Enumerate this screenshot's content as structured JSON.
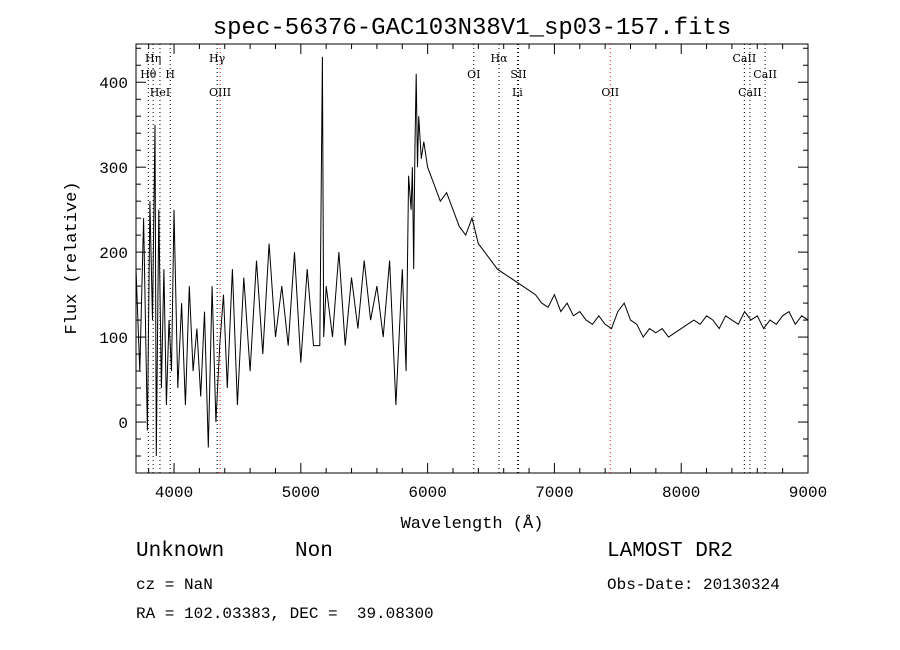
{
  "chart_data": {
    "type": "line",
    "title": "spec-56376-GAC103N38V1_sp03-157.fits",
    "xlabel": "Wavelength (Å)",
    "ylabel": "Flux (relative)",
    "xlim": [
      3700,
      9000
    ],
    "ylim": [
      -60,
      445
    ],
    "xticks": [
      4000,
      5000,
      6000,
      7000,
      8000,
      9000
    ],
    "yticks": [
      0,
      100,
      200,
      300,
      400
    ],
    "grid": false,
    "series": [
      {
        "color": "#000000",
        "x": [
          3700,
          3730,
          3760,
          3790,
          3810,
          3830,
          3850,
          3860,
          3880,
          3900,
          3920,
          3940,
          3960,
          3980,
          4000,
          4030,
          4060,
          4090,
          4120,
          4150,
          4180,
          4210,
          4240,
          4270,
          4300,
          4330,
          4360,
          4390,
          4420,
          4460,
          4500,
          4550,
          4600,
          4650,
          4700,
          4750,
          4800,
          4850,
          4900,
          4950,
          5000,
          5050,
          5100,
          5150,
          5170,
          5180,
          5200,
          5250,
          5300,
          5350,
          5400,
          5450,
          5500,
          5550,
          5600,
          5650,
          5700,
          5750,
          5800,
          5830,
          5850,
          5870,
          5880,
          5890,
          5900,
          5910,
          5920,
          5930,
          5950,
          5970,
          6000,
          6050,
          6100,
          6150,
          6200,
          6250,
          6300,
          6350,
          6400,
          6450,
          6500,
          6550,
          6600,
          6650,
          6700,
          6750,
          6800,
          6850,
          6900,
          6950,
          7000,
          7050,
          7100,
          7150,
          7200,
          7250,
          7300,
          7350,
          7400,
          7450,
          7500,
          7550,
          7600,
          7650,
          7700,
          7750,
          7800,
          7850,
          7900,
          7950,
          8000,
          8050,
          8100,
          8150,
          8200,
          8250,
          8300,
          8350,
          8400,
          8450,
          8500,
          8550,
          8600,
          8650,
          8700,
          8750,
          8800,
          8850,
          8900,
          8950,
          9000
        ],
        "y": [
          180,
          60,
          240,
          -10,
          260,
          120,
          350,
          -40,
          250,
          40,
          180,
          20,
          120,
          60,
          250,
          40,
          140,
          20,
          160,
          60,
          110,
          30,
          130,
          -30,
          160,
          0,
          90,
          150,
          40,
          180,
          20,
          170,
          60,
          190,
          80,
          210,
          100,
          160,
          90,
          200,
          70,
          180,
          90,
          90,
          430,
          100,
          160,
          100,
          200,
          90,
          170,
          110,
          190,
          120,
          160,
          100,
          190,
          20,
          180,
          60,
          290,
          250,
          300,
          180,
          320,
          410,
          300,
          360,
          310,
          330,
          300,
          280,
          260,
          270,
          250,
          230,
          220,
          240,
          210,
          200,
          190,
          180,
          175,
          170,
          165,
          160,
          155,
          150,
          140,
          135,
          150,
          130,
          140,
          125,
          130,
          120,
          115,
          125,
          115,
          110,
          130,
          140,
          120,
          115,
          100,
          110,
          105,
          110,
          100,
          105,
          110,
          115,
          120,
          115,
          125,
          120,
          110,
          125,
          120,
          115,
          130,
          120,
          125,
          110,
          120,
          115,
          125,
          130,
          115,
          125,
          120
        ]
      }
    ],
    "lines": [
      {
        "label": "Hη",
        "x": 3835,
        "color": "#000000"
      },
      {
        "label": "Hθ",
        "x": 3797,
        "color": "#000000"
      },
      {
        "label": "HeI",
        "x": 3889,
        "color": "#000000"
      },
      {
        "label": "H",
        "x": 3970,
        "color": "#000000"
      },
      {
        "label": "Hγ",
        "x": 4340,
        "color": "#000000"
      },
      {
        "label": "OIII",
        "x": 4363,
        "color": "#ff0000"
      },
      {
        "label": "OI",
        "x": 6364,
        "color": "#000000"
      },
      {
        "label": "Hα",
        "x": 6563,
        "color": "#000000"
      },
      {
        "label": "SII",
        "x": 6717,
        "color": "#000000"
      },
      {
        "label": "Li",
        "x": 6708,
        "color": "#000000"
      },
      {
        "label": "OII",
        "x": 7440,
        "color": "#ff0000"
      },
      {
        "label": "CaII",
        "x": 8498,
        "color": "#000000"
      },
      {
        "label": "CaII",
        "x": 8542,
        "color": "#000000"
      },
      {
        "label": "CaII",
        "x": 8662,
        "color": "#000000"
      }
    ]
  },
  "info": {
    "class": "Unknown",
    "subclass": "Non",
    "survey": "LAMOST DR2",
    "cz": "cz = NaN",
    "obs_date": "Obs-Date: 20130324",
    "coords": "RA = 102.03383, DEC =  39.08300"
  }
}
